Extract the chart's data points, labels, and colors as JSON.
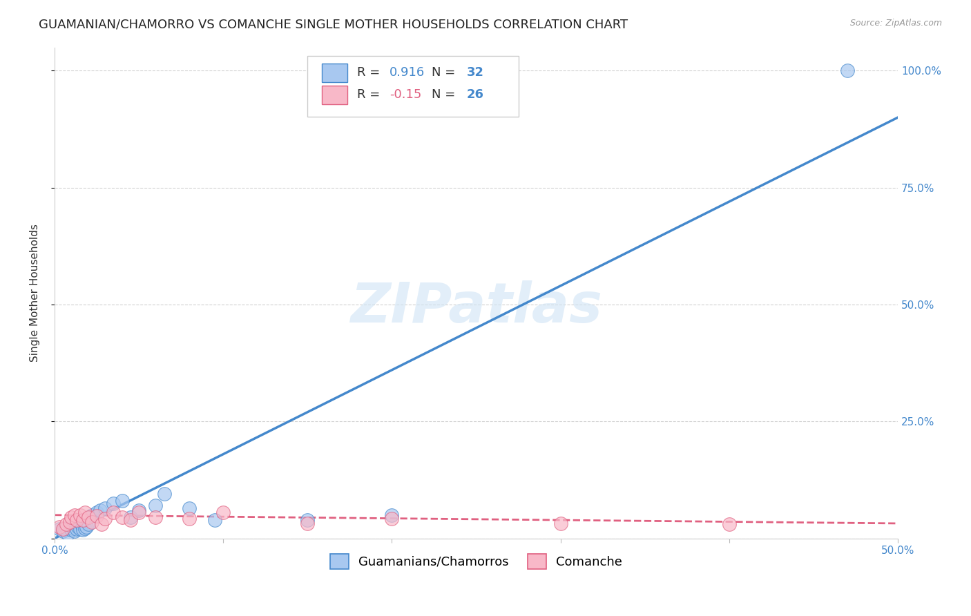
{
  "title": "GUAMANIAN/CHAMORRO VS COMANCHE SINGLE MOTHER HOUSEHOLDS CORRELATION CHART",
  "source": "Source: ZipAtlas.com",
  "ylabel": "Single Mother Households",
  "xlim": [
    0.0,
    0.5
  ],
  "ylim": [
    0.0,
    1.05
  ],
  "yticks": [
    0.0,
    0.25,
    0.5,
    0.75,
    1.0
  ],
  "right_ytick_labels": [
    "",
    "25.0%",
    "50.0%",
    "75.0%",
    "100.0%"
  ],
  "blue_R": 0.916,
  "blue_N": 32,
  "pink_R": -0.15,
  "pink_N": 26,
  "blue_color": "#a8c8f0",
  "pink_color": "#f8b8c8",
  "blue_line_color": "#4488cc",
  "pink_line_color": "#e06080",
  "legend_label_blue": "Guamanians/Chamorros",
  "legend_label_pink": "Comanche",
  "blue_scatter_x": [
    0.003,
    0.005,
    0.006,
    0.007,
    0.008,
    0.009,
    0.01,
    0.011,
    0.012,
    0.013,
    0.014,
    0.015,
    0.016,
    0.017,
    0.018,
    0.019,
    0.02,
    0.022,
    0.025,
    0.027,
    0.03,
    0.035,
    0.04,
    0.045,
    0.05,
    0.06,
    0.065,
    0.08,
    0.095,
    0.15,
    0.2,
    0.47
  ],
  "blue_scatter_y": [
    0.02,
    0.015,
    0.018,
    0.022,
    0.01,
    0.025,
    0.018,
    0.022,
    0.015,
    0.02,
    0.025,
    0.02,
    0.03,
    0.018,
    0.022,
    0.025,
    0.03,
    0.05,
    0.055,
    0.06,
    0.065,
    0.075,
    0.08,
    0.045,
    0.06,
    0.07,
    0.095,
    0.065,
    0.04,
    0.04,
    0.05,
    1.0
  ],
  "pink_scatter_x": [
    0.003,
    0.005,
    0.007,
    0.009,
    0.01,
    0.012,
    0.013,
    0.015,
    0.017,
    0.018,
    0.02,
    0.022,
    0.025,
    0.028,
    0.03,
    0.035,
    0.04,
    0.045,
    0.05,
    0.06,
    0.08,
    0.1,
    0.15,
    0.2,
    0.3,
    0.4
  ],
  "pink_scatter_y": [
    0.025,
    0.02,
    0.03,
    0.035,
    0.045,
    0.05,
    0.04,
    0.05,
    0.04,
    0.055,
    0.045,
    0.035,
    0.048,
    0.03,
    0.042,
    0.055,
    0.045,
    0.04,
    0.055,
    0.045,
    0.042,
    0.055,
    0.032,
    0.042,
    0.032,
    0.03
  ],
  "blue_line_x": [
    0.0,
    0.5
  ],
  "blue_line_y": [
    0.0,
    0.9
  ],
  "pink_line_x": [
    0.0,
    0.5
  ],
  "pink_line_y": [
    0.05,
    0.032
  ],
  "watermark": "ZIPatlas",
  "background_color": "#ffffff",
  "grid_color": "#cccccc",
  "title_fontsize": 13,
  "axis_label_fontsize": 11,
  "tick_fontsize": 11,
  "legend_fontsize": 13
}
